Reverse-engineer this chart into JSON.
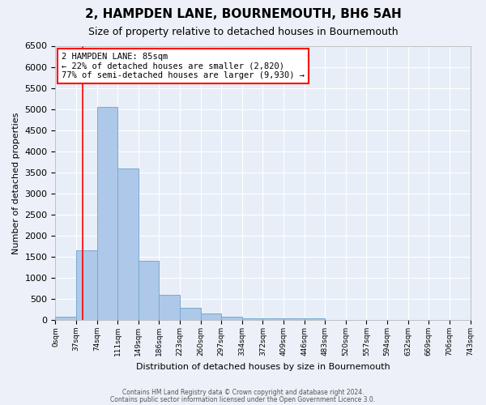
{
  "title": "2, HAMPDEN LANE, BOURNEMOUTH, BH6 5AH",
  "subtitle": "Size of property relative to detached houses in Bournemouth",
  "xlabel": "Distribution of detached houses by size in Bournemouth",
  "ylabel": "Number of detached properties",
  "bar_color": "#adc8e8",
  "bar_edge_color": "#7aaad0",
  "background_color": "#e8eef8",
  "grid_color": "#ffffff",
  "tick_labels": [
    "0sqm",
    "37sqm",
    "74sqm",
    "111sqm",
    "149sqm",
    "186sqm",
    "223sqm",
    "260sqm",
    "297sqm",
    "334sqm",
    "372sqm",
    "409sqm",
    "446sqm",
    "483sqm",
    "520sqm",
    "557sqm",
    "594sqm",
    "632sqm",
    "669sqm",
    "706sqm",
    "743sqm"
  ],
  "bar_values": [
    75,
    1650,
    5050,
    3600,
    1400,
    600,
    300,
    150,
    75,
    50,
    50,
    50,
    50,
    0,
    0,
    0,
    0,
    0,
    0,
    0
  ],
  "ylim": [
    0,
    6500
  ],
  "yticks": [
    0,
    500,
    1000,
    1500,
    2000,
    2500,
    3000,
    3500,
    4000,
    4500,
    5000,
    5500,
    6000,
    6500
  ],
  "red_line_x": 1.3,
  "annotation_title": "2 HAMPDEN LANE: 85sqm",
  "annotation_line1": "← 22% of detached houses are smaller (2,820)",
  "annotation_line2": "77% of semi-detached houses are larger (9,930) →",
  "footer_line1": "Contains HM Land Registry data © Crown copyright and database right 2024.",
  "footer_line2": "Contains public sector information licensed under the Open Government Licence 3.0.",
  "bar_width": 1.0
}
